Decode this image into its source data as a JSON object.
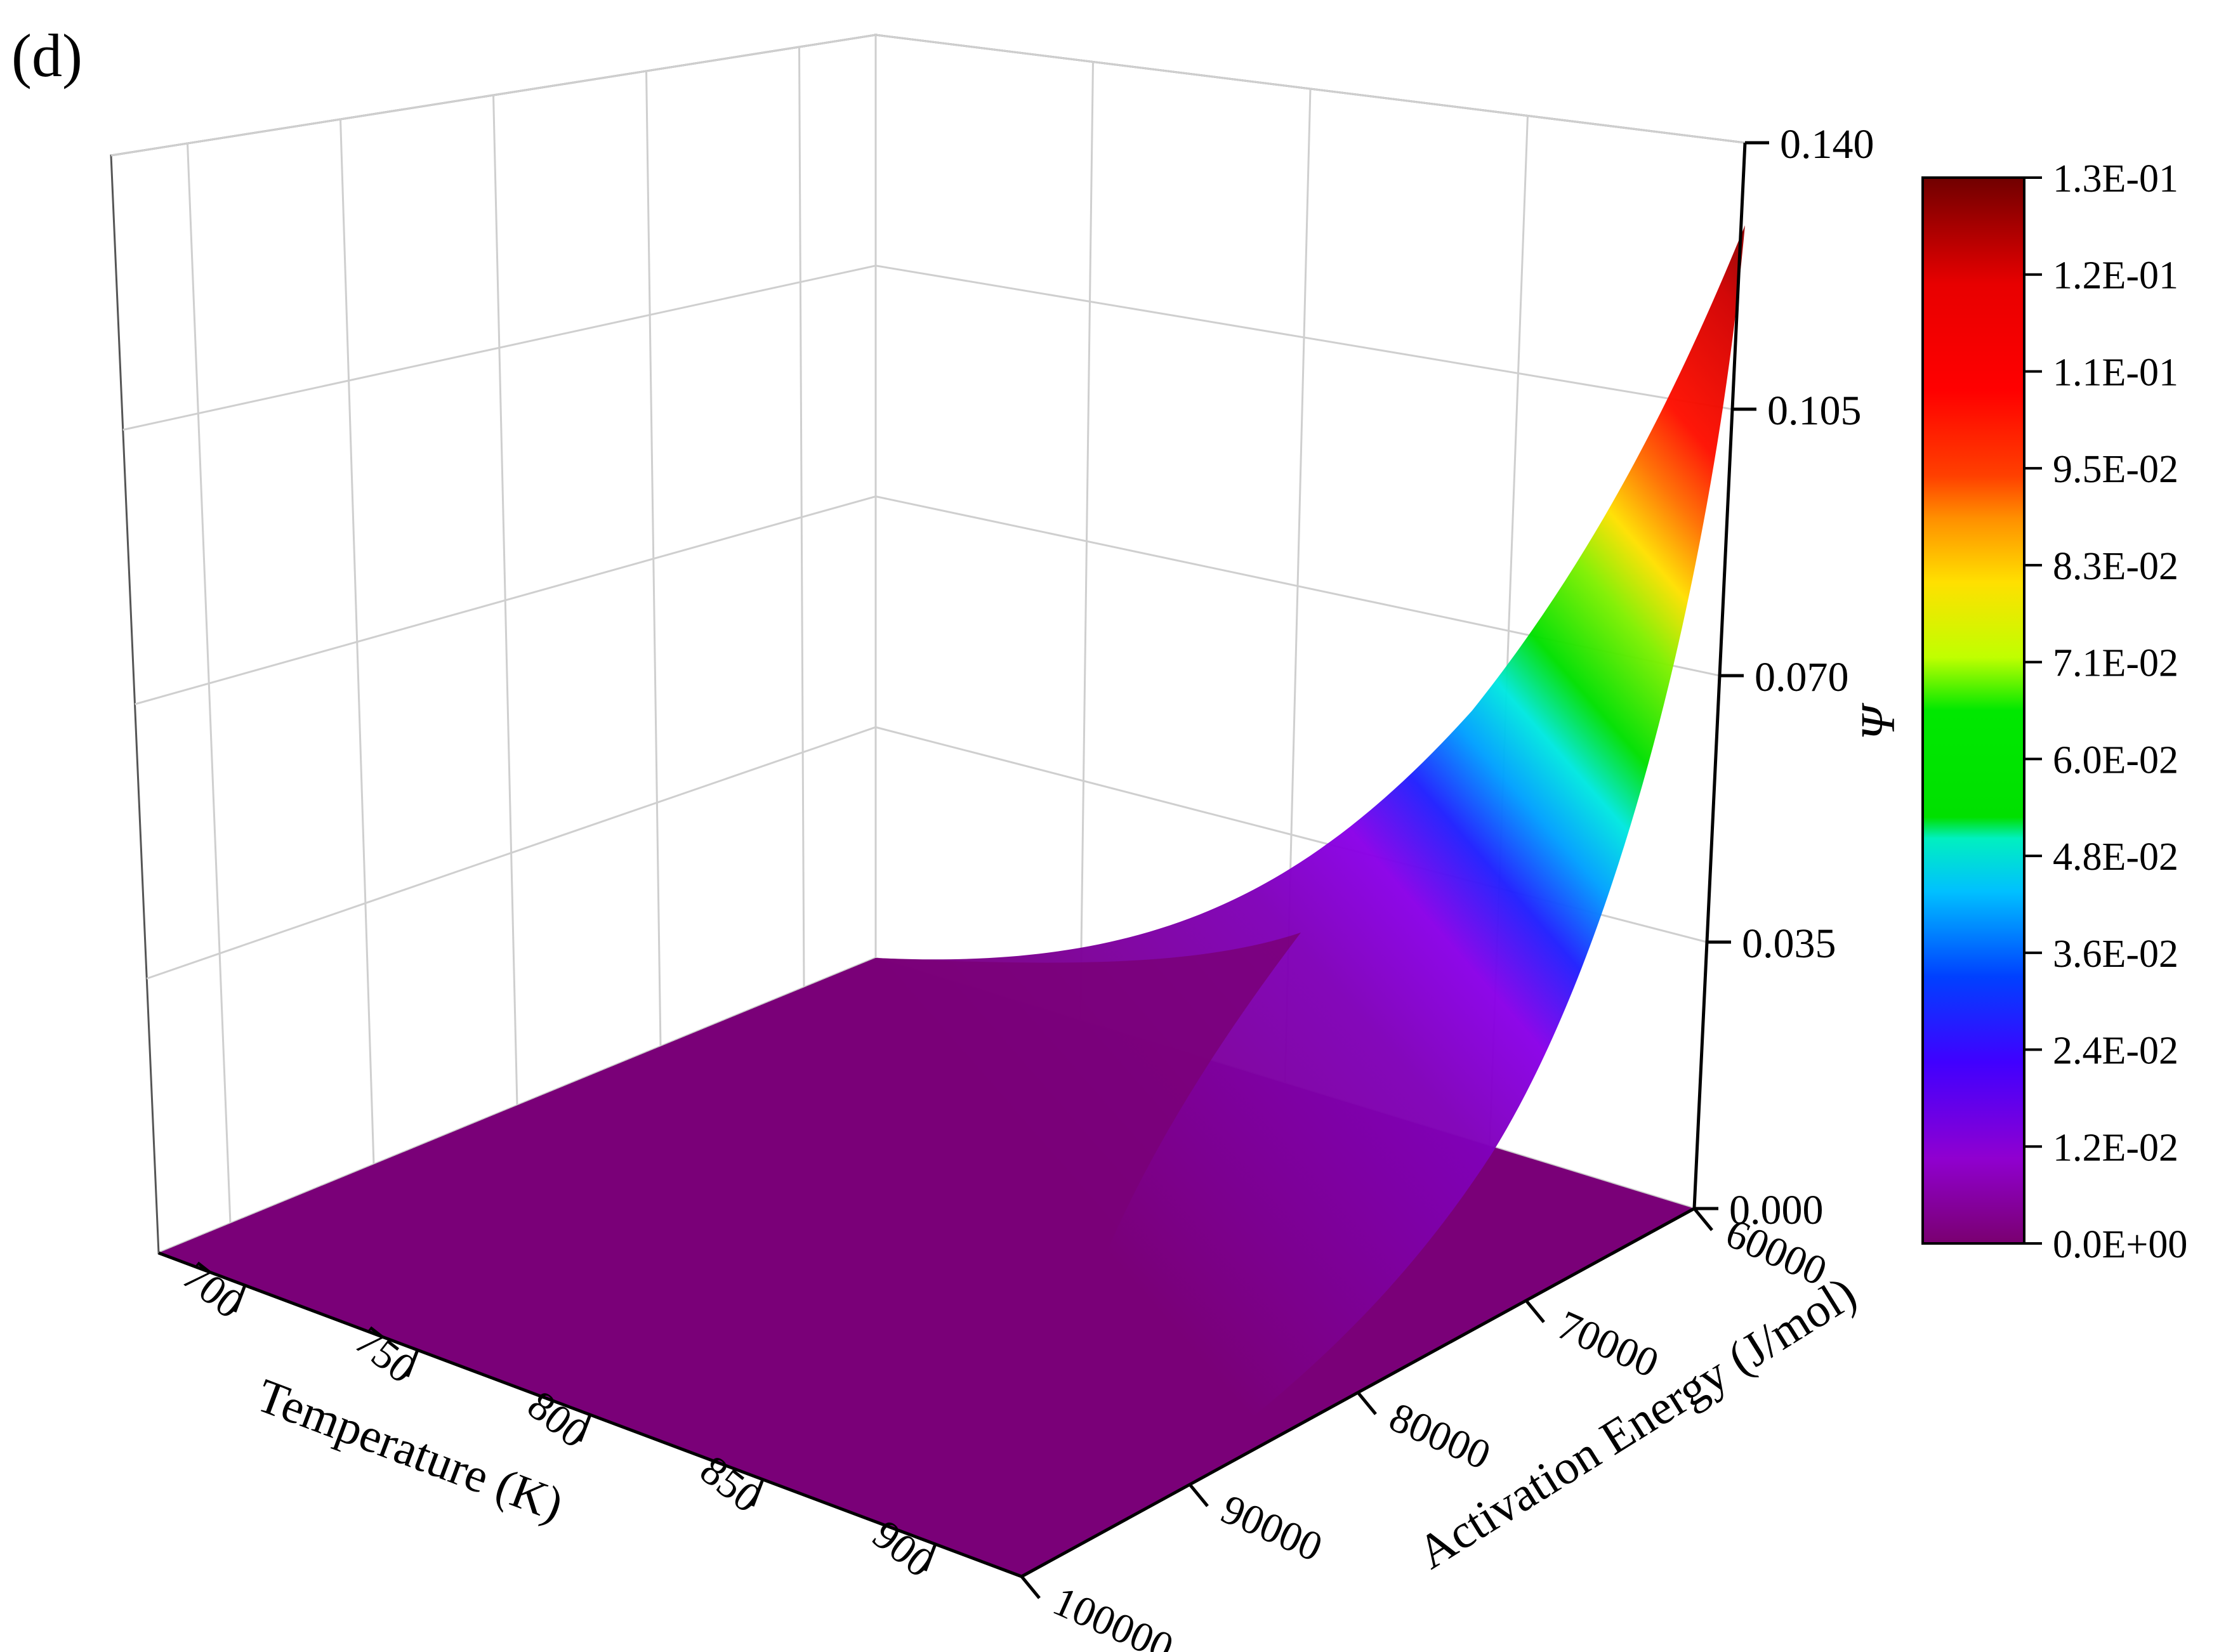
{
  "panel_label": "(d)",
  "chart_data": {
    "type": "surface3d",
    "x_axis": {
      "label": "Temperature (K)",
      "ticks": [
        700,
        750,
        800,
        850,
        900
      ],
      "tick_labels": [
        "700",
        "750",
        "800",
        "850",
        "900"
      ],
      "range": [
        675,
        925
      ]
    },
    "y_axis": {
      "label": "Activation Energy (J/mol)",
      "ticks": [
        60000,
        70000,
        80000,
        90000,
        100000
      ],
      "tick_labels": [
        "60000",
        "70000",
        "80000",
        "90000",
        "100000"
      ],
      "range": [
        60000,
        100000
      ]
    },
    "z_axis": {
      "label": "Ψ",
      "ticks": [
        0.0,
        0.035,
        0.07,
        0.105,
        0.14
      ],
      "tick_labels": [
        "0.000",
        "0.035",
        "0.070",
        "0.105",
        "0.140"
      ],
      "range": [
        0,
        0.14
      ]
    },
    "surface": {
      "description_values": "Psi rises sharply toward high temperature and low activation energy",
      "corner_values": [
        {
          "temperature": 675,
          "activation_energy": 60000,
          "psi": 0.0
        },
        {
          "temperature": 925,
          "activation_energy": 60000,
          "psi": 0.132
        },
        {
          "temperature": 675,
          "activation_energy": 100000,
          "psi": 0.0
        },
        {
          "temperature": 925,
          "activation_energy": 100000,
          "psi": 0.0
        }
      ]
    },
    "colorbar": {
      "labels": [
        "1.3E-01",
        "1.2E-01",
        "1.1E-01",
        "9.5E-02",
        "8.3E-02",
        "7.1E-02",
        "6.0E-02",
        "4.8E-02",
        "3.6E-02",
        "2.4E-02",
        "1.2E-02",
        "0.0E+00"
      ],
      "values": [
        0.13,
        0.12,
        0.11,
        0.095,
        0.083,
        0.071,
        0.06,
        0.048,
        0.036,
        0.024,
        0.012,
        0.0
      ],
      "colors": [
        "#7a0000",
        "#e60000",
        "#ff0000",
        "#ff2a00",
        "#ff8000",
        "#ffc800",
        "#e6f000",
        "#00ea00",
        "#00e0d0",
        "#0060ff",
        "#3a00ff",
        "#8a00e0",
        "#7a0078"
      ]
    },
    "grid": true
  }
}
